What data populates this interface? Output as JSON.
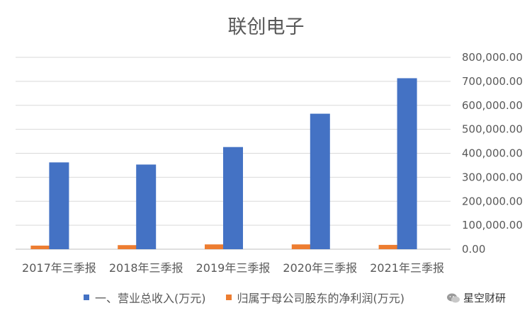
{
  "chart_data": {
    "type": "bar",
    "title": "联创电子",
    "categories": [
      "2017年三季报",
      "2018年三季报",
      "2019年三季报",
      "2020年三季报",
      "2021年三季报"
    ],
    "series": [
      {
        "name": "一、营业总收入(万元)",
        "color": "#4472C4",
        "values": [
          362000,
          353000,
          426000,
          565000,
          713000
        ]
      },
      {
        "name": "归属于母公司股东的净利润(万元)",
        "color": "#ED7D31",
        "values": [
          15000,
          17000,
          20000,
          20000,
          18000
        ]
      }
    ],
    "yaxis": {
      "position": "right",
      "ylim": [
        0,
        800000
      ],
      "ticks": [
        "0.00",
        "100,000.00",
        "200,000.00",
        "300,000.00",
        "400,000.00",
        "500,000.00",
        "600,000.00",
        "700,000.00",
        "800,000.00"
      ]
    },
    "grid": true,
    "legend": "bottom",
    "xlabel": "",
    "ylabel": ""
  },
  "watermark": {
    "text": "星空财研",
    "icon": "wechat-icon"
  }
}
